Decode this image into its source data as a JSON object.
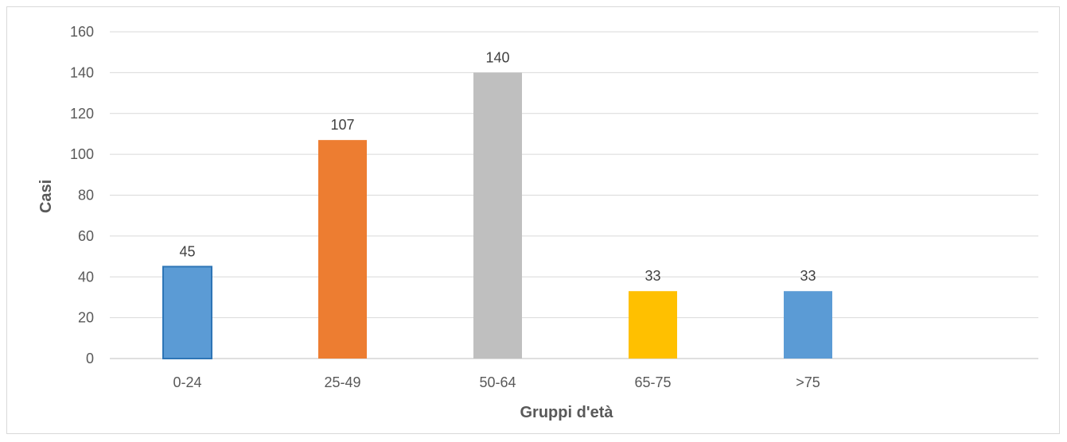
{
  "chart_data": {
    "type": "bar",
    "categories": [
      "0-24",
      "25-49",
      "50-64",
      "65-75",
      ">75"
    ],
    "values": [
      45,
      107,
      140,
      33,
      33
    ],
    "colors": [
      "#5b9bd5",
      "#ed7d31",
      "#bfbfbf",
      "#ffc000",
      "#5b9bd5"
    ],
    "title": "",
    "xlabel": "Gruppi d'età",
    "ylabel": "Casi",
    "ylim": [
      0,
      160
    ],
    "yticks": [
      0,
      20,
      40,
      60,
      80,
      100,
      120,
      140,
      160
    ],
    "grid": true,
    "legend": "none",
    "data_labels": true
  }
}
